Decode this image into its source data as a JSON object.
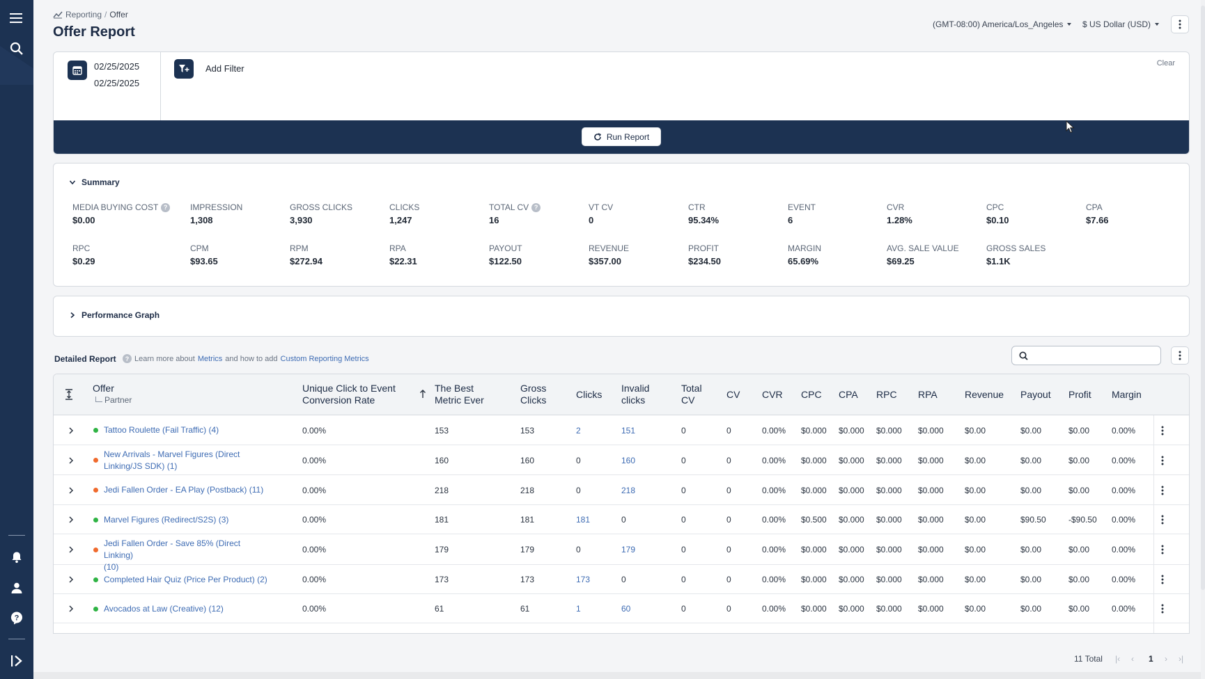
{
  "breadcrumb": {
    "root": "Reporting",
    "separator": "/",
    "current": "Offer"
  },
  "page": {
    "title": "Offer Report"
  },
  "settings": {
    "timezone": "(GMT-08:00) America/Los_Angeles",
    "currency": "$ US Dollar (USD)"
  },
  "filters": {
    "date_start": "02/25/2025",
    "date_end": "02/25/2025",
    "add_filter_label": "Add Filter",
    "clear_label": "Clear",
    "run_label": "Run Report"
  },
  "summary": {
    "title": "Summary",
    "metrics": [
      {
        "label": "MEDIA BUYING COST",
        "value": "$0.00",
        "help": true
      },
      {
        "label": "IMPRESSION",
        "value": "1,308"
      },
      {
        "label": "GROSS CLICKS",
        "value": "3,930"
      },
      {
        "label": "CLICKS",
        "value": "1,247"
      },
      {
        "label": "TOTAL CV",
        "value": "16",
        "help": true
      },
      {
        "label": "VT CV",
        "value": "0"
      },
      {
        "label": "CTR",
        "value": "95.34%"
      },
      {
        "label": "EVENT",
        "value": "6"
      },
      {
        "label": "CVR",
        "value": "1.28%"
      },
      {
        "label": "CPC",
        "value": "$0.10"
      },
      {
        "label": "CPA",
        "value": "$7.66"
      },
      {
        "label": "RPC",
        "value": "$0.29"
      },
      {
        "label": "CPM",
        "value": "$93.65"
      },
      {
        "label": "RPM",
        "value": "$272.94"
      },
      {
        "label": "RPA",
        "value": "$22.31"
      },
      {
        "label": "PAYOUT",
        "value": "$122.50"
      },
      {
        "label": "REVENUE",
        "value": "$357.00"
      },
      {
        "label": "PROFIT",
        "value": "$234.50"
      },
      {
        "label": "MARGIN",
        "value": "65.69%"
      },
      {
        "label": "AVG. SALE VALUE",
        "value": "$69.25"
      },
      {
        "label": "GROSS SALES",
        "value": "$1.1K"
      }
    ]
  },
  "performance": {
    "title": "Performance Graph"
  },
  "detailed": {
    "title": "Detailed Report",
    "help_prefix": "Learn more about",
    "help_link1": "Metrics",
    "help_middle": "and how to add",
    "help_link2": "Custom Reporting Metrics",
    "search_placeholder": ""
  },
  "table": {
    "headers": {
      "offer": "Offer",
      "partner": "Partner",
      "uce_line1": "Unique Click to Event",
      "uce_line2": "Conversion Rate",
      "best_line1": "The Best",
      "best_line2": "Metric Ever",
      "gross_line1": "Gross",
      "gross_line2": "Clicks",
      "clicks": "Clicks",
      "invalid_line1": "Invalid",
      "invalid_line2": "clicks",
      "totalcv_line1": "Total",
      "totalcv_line2": "CV",
      "cv": "CV",
      "cvr": "CVR",
      "cpc": "CPC",
      "cpa": "CPA",
      "rpc": "RPC",
      "rpa": "RPA",
      "revenue": "Revenue",
      "payout": "Payout",
      "profit": "Profit",
      "margin": "Margin"
    },
    "rows": [
      {
        "offer_line1": "Tattoo Roulette (Fail Traffic) (4)",
        "offer_line2": "",
        "status": "#2fb344",
        "uce": "0.00%",
        "best": "153",
        "gross": "153",
        "clicks": "2",
        "invalid": "151",
        "total_cv": "0",
        "cv": "0",
        "cvr": "0.00%",
        "cpc": "$0.000",
        "cpa": "$0.000",
        "rpc": "$0.000",
        "rpa": "$0.000",
        "revenue": "$0.00",
        "payout": "$0.00",
        "profit": "$0.00",
        "margin": "0.00%"
      },
      {
        "offer_line1": "New Arrivals - Marvel Figures (Direct",
        "offer_line2": "Linking/JS SDK) (1)",
        "status": "#f06a2d",
        "uce": "0.00%",
        "best": "160",
        "gross": "160",
        "clicks": "0",
        "invalid": "160",
        "total_cv": "0",
        "cv": "0",
        "cvr": "0.00%",
        "cpc": "$0.000",
        "cpa": "$0.000",
        "rpc": "$0.000",
        "rpa": "$0.000",
        "revenue": "$0.00",
        "payout": "$0.00",
        "profit": "$0.00",
        "margin": "0.00%"
      },
      {
        "offer_line1": "Jedi Fallen Order - EA Play (Postback) (11)",
        "offer_line2": "",
        "status": "#f06a2d",
        "uce": "0.00%",
        "best": "218",
        "gross": "218",
        "clicks": "0",
        "invalid": "218",
        "total_cv": "0",
        "cv": "0",
        "cvr": "0.00%",
        "cpc": "$0.000",
        "cpa": "$0.000",
        "rpc": "$0.000",
        "rpa": "$0.000",
        "revenue": "$0.00",
        "payout": "$0.00",
        "profit": "$0.00",
        "margin": "0.00%"
      },
      {
        "offer_line1": "Marvel Figures (Redirect/S2S) (3)",
        "offer_line2": "",
        "status": "#2fb344",
        "uce": "0.00%",
        "best": "181",
        "gross": "181",
        "clicks": "181",
        "invalid": "0",
        "total_cv": "0",
        "cv": "0",
        "cvr": "0.00%",
        "cpc": "$0.500",
        "cpa": "$0.000",
        "rpc": "$0.000",
        "rpa": "$0.000",
        "revenue": "$0.00",
        "payout": "$90.50",
        "profit": "-$90.50",
        "margin": "0.00%"
      },
      {
        "offer_line1": "Jedi Fallen Order - Save 85% (Direct Linking)",
        "offer_line2": "(10)",
        "status": "#f06a2d",
        "uce": "0.00%",
        "best": "179",
        "gross": "179",
        "clicks": "0",
        "invalid": "179",
        "total_cv": "0",
        "cv": "0",
        "cvr": "0.00%",
        "cpc": "$0.000",
        "cpa": "$0.000",
        "rpc": "$0.000",
        "rpa": "$0.000",
        "revenue": "$0.00",
        "payout": "$0.00",
        "profit": "$0.00",
        "margin": "0.00%"
      },
      {
        "offer_line1": "Completed Hair Quiz (Price Per Product) (2)",
        "offer_line2": "",
        "status": "#2fb344",
        "uce": "0.00%",
        "best": "173",
        "gross": "173",
        "clicks": "173",
        "invalid": "0",
        "total_cv": "0",
        "cv": "0",
        "cvr": "0.00%",
        "cpc": "$0.000",
        "cpa": "$0.000",
        "rpc": "$0.000",
        "rpa": "$0.000",
        "revenue": "$0.00",
        "payout": "$0.00",
        "profit": "$0.00",
        "margin": "0.00%"
      },
      {
        "offer_line1": "Avocados at Law (Creative) (12)",
        "offer_line2": "",
        "status": "#2fb344",
        "uce": "0.00%",
        "best": "61",
        "gross": "61",
        "clicks": "1",
        "invalid": "60",
        "total_cv": "0",
        "cv": "0",
        "cvr": "0.00%",
        "cpc": "$0.000",
        "cpa": "$0.000",
        "rpc": "$0.000",
        "rpa": "$0.000",
        "revenue": "$0.00",
        "payout": "$0.00",
        "profit": "$0.00",
        "margin": "0.00%"
      }
    ]
  },
  "pagination": {
    "total": "11 Total",
    "current_page": "1"
  }
}
